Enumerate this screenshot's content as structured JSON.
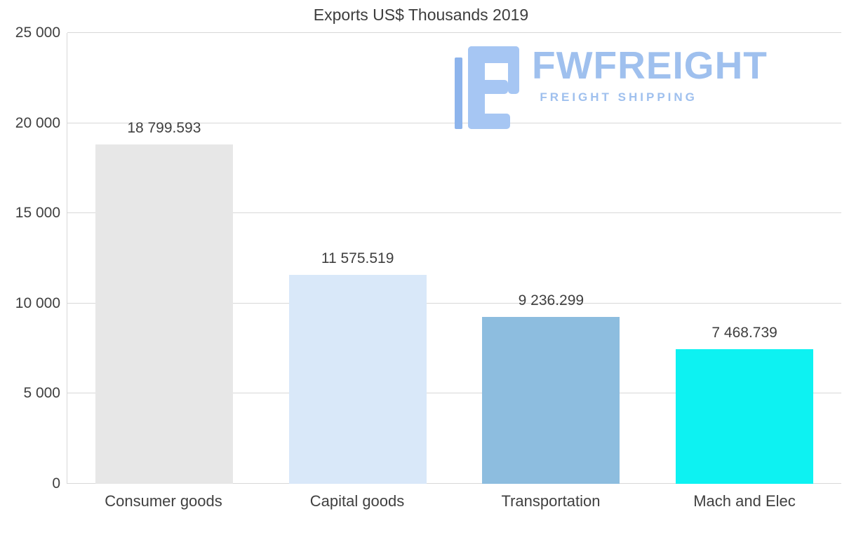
{
  "chart_data": {
    "type": "bar",
    "title": "Exports US$ Thousands 2019",
    "categories": [
      "Consumer goods",
      "Capital goods",
      "Transportation",
      "Mach and Elec"
    ],
    "values": [
      18799.593,
      11575.519,
      9236.299,
      7468.739
    ],
    "value_labels": [
      "18 799.593",
      "11 575.519",
      "9 236.299",
      "7 468.739"
    ],
    "bar_colors": [
      "#e7e7e7",
      "#d9e8f9",
      "#8dbddf",
      "#0df2f2"
    ],
    "xlabel": "",
    "ylabel": "",
    "ylim": [
      0,
      25000
    ],
    "y_ticks": [
      0,
      5000,
      10000,
      15000,
      20000,
      25000
    ],
    "y_tick_labels": [
      "0",
      "5 000",
      "10 000",
      "15 000",
      "20 000",
      "25 000"
    ],
    "grid": true,
    "legend": false
  },
  "watermark": {
    "brand": "FWFREIGHT",
    "tagline": "FREIGHT SHIPPING",
    "color": "#9fc0ee"
  },
  "colors": {
    "title_text": "#3d3d3d",
    "axis_text": "#404040",
    "gridline": "#d8d8d8",
    "background": "#ffffff"
  }
}
